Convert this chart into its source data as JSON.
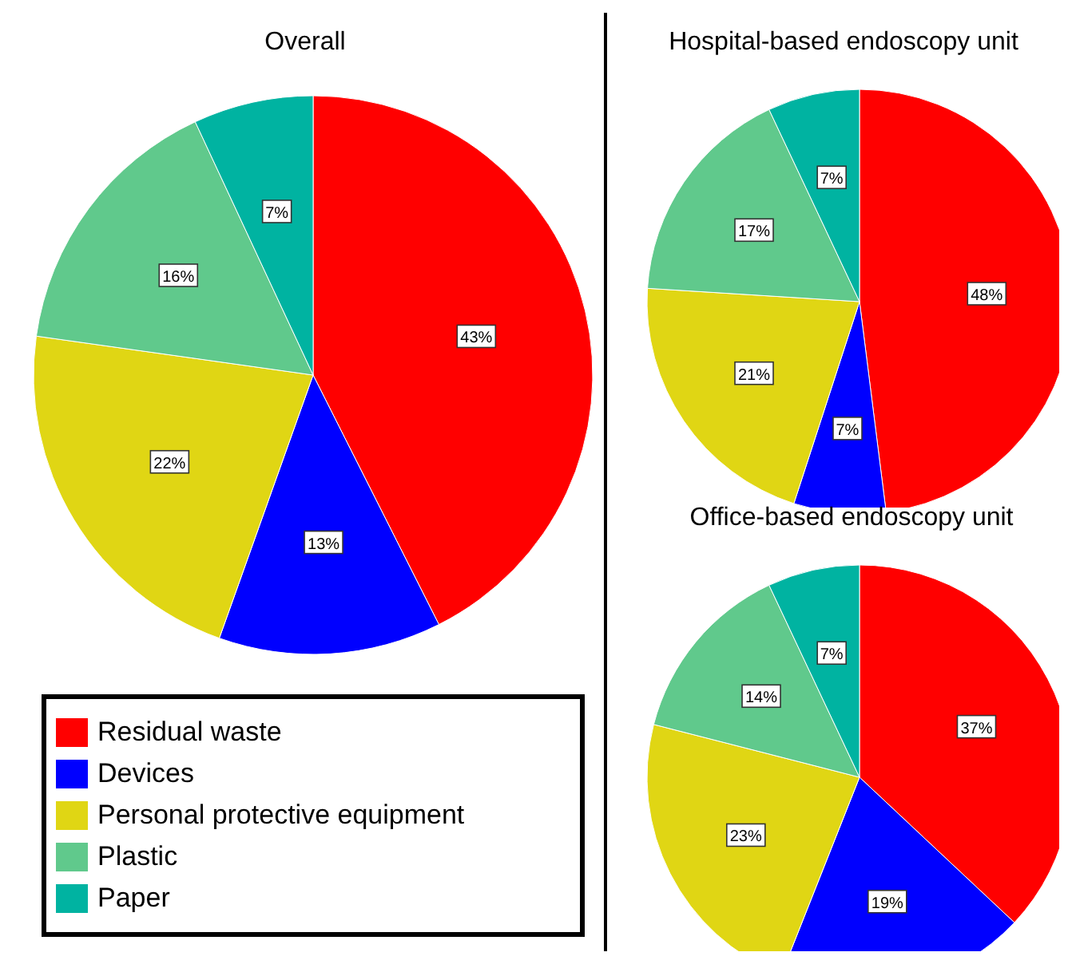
{
  "chart_data": [
    {
      "type": "pie",
      "title": "Overall",
      "categories": [
        "Residual waste",
        "Devices",
        "Personal protective equipment",
        "Plastic",
        "Paper"
      ],
      "values": [
        43,
        13,
        22,
        16,
        7
      ],
      "value_labels": [
        "43%",
        "13%",
        "22%",
        "16%",
        "7%"
      ],
      "colors": [
        "#ff0000",
        "#0000ff",
        "#e0d614",
        "#60c98c",
        "#00b3a1"
      ],
      "legend": "bottom left"
    },
    {
      "type": "pie",
      "title": "Hospital-based endoscopy unit",
      "categories": [
        null,
        null,
        null,
        null,
        null
      ],
      "values": [
        48,
        7,
        21,
        17,
        7
      ],
      "value_labels": [
        "48%",
        "7%",
        "21%",
        "17%",
        "7%"
      ],
      "colors": [
        "#ff0000",
        "#0000ff",
        "#e0d614",
        "#60c98c",
        "#00b3a1"
      ]
    },
    {
      "type": "pie",
      "title": "Office-based endoscopy unit",
      "categories": [
        null,
        null,
        null,
        null,
        null
      ],
      "values": [
        37,
        19,
        23,
        14,
        7
      ],
      "value_labels": [
        "37%",
        "19%",
        "23%",
        "14%",
        "7%"
      ],
      "colors": [
        "#ff0000",
        "#0000ff",
        "#e0d614",
        "#60c98c",
        "#00b3a1"
      ]
    }
  ]
}
